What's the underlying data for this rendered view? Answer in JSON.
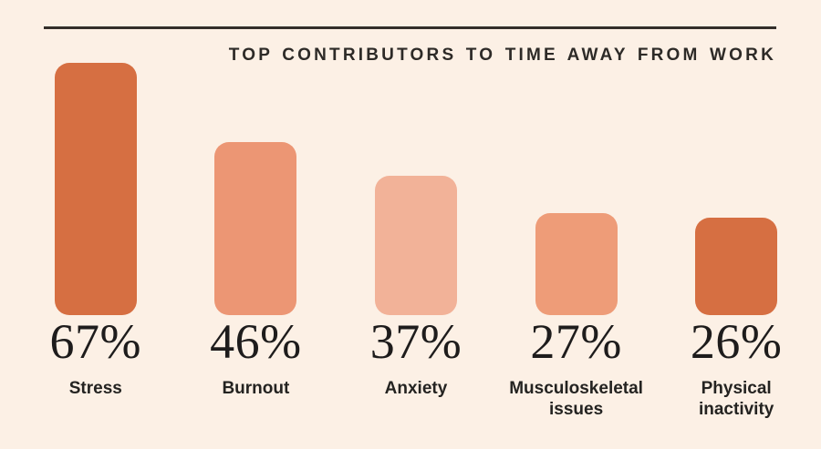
{
  "page": {
    "background_color": "#fcf0e5",
    "divider_color": "#332e2a"
  },
  "chart_data": {
    "type": "bar",
    "title": "TOP CONTRIBUTORS TO TIME AWAY FROM WORK",
    "categories": [
      "Stress",
      "Burnout",
      "Anxiety",
      "Musculoskeletal issues",
      "Physical inactivity"
    ],
    "values": [
      67,
      46,
      37,
      27,
      26
    ],
    "value_labels": [
      "67%",
      "46%",
      "37%",
      "27%",
      "26%"
    ],
    "unit": "%",
    "bar_colors": [
      "#d66f42",
      "#ec9674",
      "#f2b298",
      "#ee9c78",
      "#d66f42"
    ],
    "value_text_color": "#1e1c1c",
    "label_text_color": "#242321",
    "title_text_color": "#2d2a27",
    "xlabel": "",
    "ylabel": "",
    "ylim": [
      0,
      70
    ],
    "gridlines": false,
    "axes_shown": false,
    "legend": "none",
    "orientation": "vertical",
    "sorted": "descending"
  }
}
